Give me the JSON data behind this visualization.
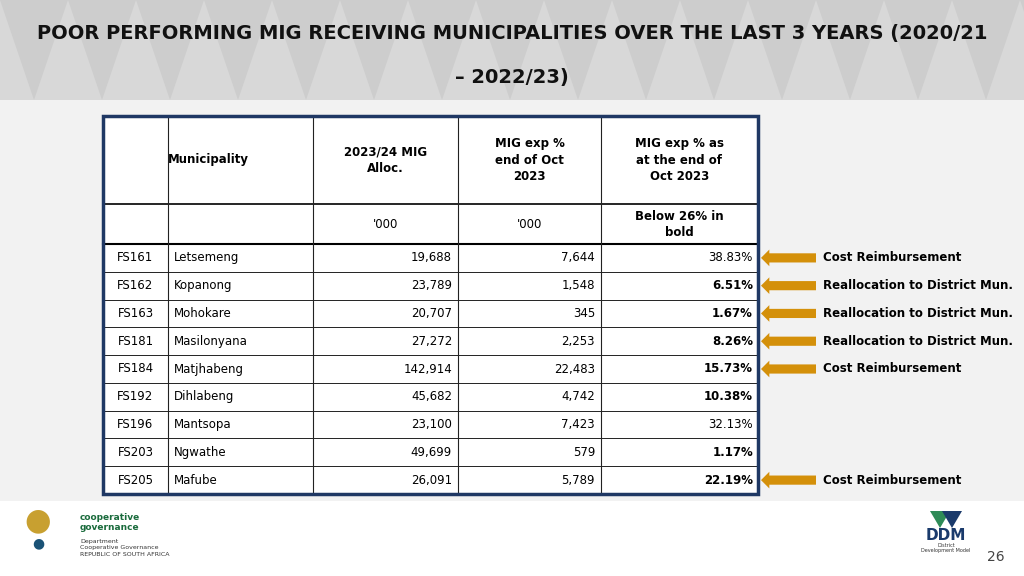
{
  "title_line1": "POOR PERFORMING MIG RECEIVING MUNICIPALITIES OVER THE LAST 3 YEARS (2020/21",
  "title_line2": "– 2022/23)",
  "bg_color": "#e8e8e8",
  "title_bg_color": "#d0d0d0",
  "body_bg_color": "#f2f2f2",
  "table_border_color": "#1f3864",
  "arrow_color": "#d4900a",
  "rows": [
    [
      "FS161",
      "Letsemeng",
      "19,688",
      "7,644",
      "38.83%",
      false,
      "Cost Reimbursement"
    ],
    [
      "FS162",
      "Kopanong",
      "23,789",
      "1,548",
      "6.51%",
      true,
      "Reallocation to District Mun."
    ],
    [
      "FS163",
      "Mohokare",
      "20,707",
      "345",
      "1.67%",
      true,
      "Reallocation to District Mun."
    ],
    [
      "FS181",
      "Masilonyana",
      "27,272",
      "2,253",
      "8.26%",
      true,
      "Reallocation to District Mun."
    ],
    [
      "FS184",
      "Matjhabeng",
      "142,914",
      "22,483",
      "15.73%",
      true,
      "Cost Reimbursement"
    ],
    [
      "FS192",
      "Dihlabeng",
      "45,682",
      "4,742",
      "10.38%",
      true,
      ""
    ],
    [
      "FS196",
      "Mantsopa",
      "23,100",
      "7,423",
      "32.13%",
      false,
      ""
    ],
    [
      "FS203",
      "Ngwathe",
      "49,699",
      "579",
      "1.17%",
      true,
      ""
    ],
    [
      "FS205",
      "Mafube",
      "26,091",
      "5,789",
      "22.19%",
      true,
      "Cost Reimbursement"
    ]
  ],
  "page_num": "26",
  "title_fs": 14,
  "header_fs": 8.5,
  "data_fs": 8.5,
  "annot_fs": 8.5,
  "chevron_color": "#c4c4c4",
  "chevron_bg": "#d8d8d8"
}
